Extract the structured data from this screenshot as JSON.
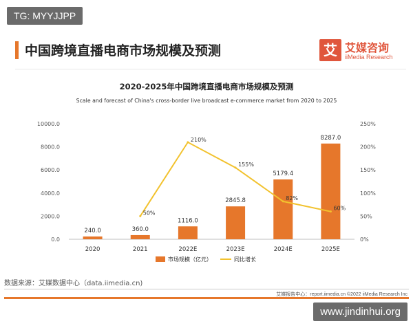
{
  "badge": "TG: MYYJJPP",
  "header": {
    "title": "中国跨境直播电商市场规模及预测"
  },
  "logo": {
    "mark": "艾",
    "cn": "艾媒咨询",
    "en": "iiMedia Research"
  },
  "chart_data": {
    "type": "bar",
    "title": "2020-2025年中国跨境直播电商市场规模及预测",
    "subtitle": "Scale and forecast of China's cross-border live broadcast e-commerce market from 2020 to 2025",
    "categories": [
      "2020",
      "2021",
      "2022E",
      "2023E",
      "2024E",
      "2025E"
    ],
    "series": [
      {
        "name": "市场规模（亿元）",
        "type": "bar",
        "axis": "left",
        "color": "#e6772b",
        "values": [
          240.0,
          360.0,
          1116.0,
          2845.8,
          5179.4,
          8287.0
        ],
        "labels": [
          "240.0",
          "360.0",
          "1116.0",
          "2845.8",
          "5179.4",
          "8287.0"
        ]
      },
      {
        "name": "同比增长",
        "type": "line",
        "axis": "right",
        "color": "#f2c22e",
        "values": [
          null,
          50,
          210,
          155,
          82,
          60
        ],
        "labels": [
          "",
          "50%",
          "210%",
          "155%",
          "82%",
          "60%"
        ]
      }
    ],
    "yLeft": {
      "min": 0,
      "max": 10000,
      "ticks": [
        "0.0",
        "2000.0",
        "4000.0",
        "6000.0",
        "8000.0",
        "10000.0"
      ]
    },
    "yRight": {
      "min": 0,
      "max": 250,
      "ticks": [
        "0%",
        "50%",
        "100%",
        "150%",
        "200%",
        "250%"
      ]
    },
    "grid": false,
    "legend_position": "bottom"
  },
  "footer": {
    "source": "数据来源：艾媒数据中心（data.iimedia.cn)",
    "right": "艾媒报告中心：report.iimedia.cn  ©2022  iiMedia Research  Inc"
  },
  "watermark": "www.jindinhui.org"
}
